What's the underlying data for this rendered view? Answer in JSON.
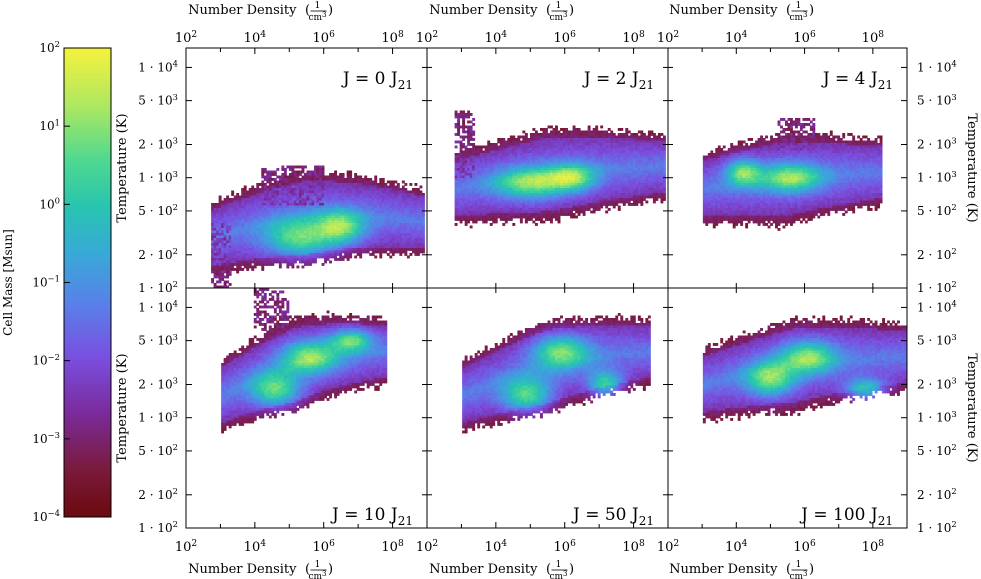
{
  "chart_data": {
    "type": "heatmap",
    "colorbar": {
      "label": "Cell Mass [Msun]",
      "scale": "log",
      "range": [
        0.0001,
        100
      ],
      "colormap": "viridis (dark-red at low end)",
      "ticks": [
        {
          "value": 100,
          "mant": "10",
          "exp": "2"
        },
        {
          "value": 10,
          "mant": "10",
          "exp": "1"
        },
        {
          "value": 1,
          "mant": "10",
          "exp": "0"
        },
        {
          "value": 0.1,
          "mant": "10",
          "exp": "−1"
        },
        {
          "value": 0.01,
          "mant": "10",
          "exp": "−2"
        },
        {
          "value": 0.001,
          "mant": "10",
          "exp": "−3"
        },
        {
          "value": 0.0001,
          "mant": "10",
          "exp": "−4"
        }
      ]
    },
    "x_axis": {
      "label": "Number Density",
      "unit_num": "1",
      "unit_den_base": "cm",
      "unit_den_exp": "3",
      "scale": "log",
      "range": [
        100,
        1000000000
      ],
      "ticks": [
        {
          "value": 100,
          "mant": "10",
          "exp": "2"
        },
        {
          "value": 10000,
          "mant": "10",
          "exp": "4"
        },
        {
          "value": 1000000,
          "mant": "10",
          "exp": "6"
        },
        {
          "value": 100000000,
          "mant": "10",
          "exp": "8"
        }
      ]
    },
    "y_axis_top_row": {
      "label": "Temperature  (K)",
      "scale": "log",
      "range": [
        100,
        15000
      ],
      "ticks": [
        {
          "value": 10000,
          "text": "1 · 10",
          "exp": "4"
        },
        {
          "value": 5000,
          "text": "5 · 10",
          "exp": "3"
        },
        {
          "value": 2000,
          "text": "2 · 10",
          "exp": "3"
        },
        {
          "value": 1000,
          "text": "1 · 10",
          "exp": "3"
        },
        {
          "value": 500,
          "text": "5 · 10",
          "exp": "2"
        },
        {
          "value": 200,
          "text": "2 · 10",
          "exp": "2"
        },
        {
          "value": 100,
          "text": "1 · 10",
          "exp": "2"
        }
      ]
    },
    "y_axis_bottom_row": {
      "label": "Temperature  (K)",
      "scale": "log",
      "range": [
        100,
        15000
      ],
      "ticks": [
        {
          "value": 10000,
          "text": "1 · 10",
          "exp": "4"
        },
        {
          "value": 5000,
          "text": "5 · 10",
          "exp": "3"
        },
        {
          "value": 2000,
          "text": "2 · 10",
          "exp": "3"
        },
        {
          "value": 1000,
          "text": "1 · 10",
          "exp": "3"
        },
        {
          "value": 500,
          "text": "5 · 10",
          "exp": "2"
        },
        {
          "value": 200,
          "text": "2 · 10",
          "exp": "2"
        },
        {
          "value": 100,
          "text": "1 · 10",
          "exp": "2"
        }
      ]
    },
    "panels": [
      {
        "label_main": "J = 0 J",
        "label_sub": "21",
        "label_pos": "top-right",
        "center_logn": 5.3,
        "spine_logt": [
          2.45,
          2.6
        ],
        "slope": 0.12,
        "low_tail": true,
        "hot_blob": [
          4.2,
          6.0,
          2.75,
          3.1
        ],
        "blobs": [
          [
            5.3,
            2.45,
            1.0,
            0.18
          ],
          [
            6.5,
            2.55,
            0.7,
            0.15
          ]
        ]
      },
      {
        "label_main": "J = 2 J",
        "label_sub": "21",
        "label_pos": "top-right",
        "center_logn": 5.2,
        "spine_logt": [
          2.9,
          3.1
        ],
        "slope": 0.04,
        "low_tail": false,
        "hot_blob": [
          2.6,
          3.4,
          3.0,
          3.6
        ],
        "blobs": [
          [
            5.0,
            2.95,
            1.0,
            0.14
          ],
          [
            6.2,
            3.0,
            0.7,
            0.12
          ]
        ]
      },
      {
        "label_main": "J = 4 J",
        "label_sub": "21",
        "label_pos": "top-right",
        "center_logn": 5.5,
        "spine_logt": [
          2.9,
          3.05
        ],
        "slope": 0.02,
        "low_tail": false,
        "hot_blob": [
          5.2,
          6.3,
          3.25,
          3.55
        ],
        "blobs": [
          [
            5.6,
            3.0,
            0.9,
            0.13
          ],
          [
            4.2,
            3.05,
            0.5,
            0.12
          ]
        ]
      },
      {
        "label_main": "J = 10 J",
        "label_sub": "21",
        "label_pos": "bottom-right",
        "center_logn": 5.0,
        "spine_logt": [
          3.2,
          3.6
        ],
        "slope": 0.1,
        "low_tail": false,
        "hot_blob": [
          4.0,
          5.0,
          3.8,
          4.2
        ],
        "blobs": [
          [
            4.6,
            3.25,
            0.7,
            0.16
          ],
          [
            5.6,
            3.55,
            0.8,
            0.15
          ],
          [
            6.8,
            3.7,
            0.6,
            0.1
          ]
        ]
      },
      {
        "label_main": "J = 50 J",
        "label_sub": "21",
        "label_pos": "bottom-right",
        "center_logn": 5.3,
        "spine_logt": [
          3.2,
          3.6
        ],
        "slope": 0.08,
        "low_tail": false,
        "hot_blob": null,
        "blobs": [
          [
            4.9,
            3.2,
            0.7,
            0.16
          ],
          [
            5.9,
            3.6,
            0.8,
            0.15
          ],
          [
            7.2,
            3.3,
            0.5,
            0.12
          ]
        ]
      },
      {
        "label_main": "J = 100 J",
        "label_sub": "21",
        "label_pos": "bottom-right",
        "center_logn": 5.5,
        "spine_logt": [
          3.3,
          3.55
        ],
        "slope": 0.06,
        "low_tail": false,
        "hot_blob": null,
        "blobs": [
          [
            5.0,
            3.35,
            0.7,
            0.16
          ],
          [
            6.1,
            3.55,
            0.8,
            0.15
          ],
          [
            7.8,
            3.25,
            0.6,
            0.1
          ]
        ]
      }
    ]
  }
}
